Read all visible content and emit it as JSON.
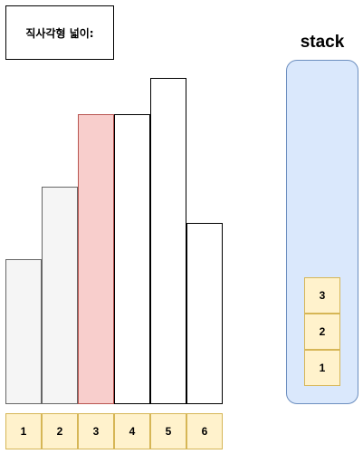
{
  "area_label": "직사각형 넓이:",
  "histogram": {
    "heights": [
      4,
      6,
      8,
      8,
      9,
      5
    ],
    "max_height": 9,
    "bar_fills": [
      "#f5f5f5",
      "#f5f5f5",
      "#f8cecc",
      "#ffffff",
      "#ffffff",
      "#ffffff"
    ],
    "bar_strokes": [
      "#666666",
      "#666666",
      "#b85450",
      "#000000",
      "#000000",
      "#000000"
    ],
    "indices": [
      "1",
      "2",
      "3",
      "4",
      "5",
      "6"
    ]
  },
  "stack": {
    "title": "stack",
    "items_top_to_bottom": [
      "3",
      "2",
      "1"
    ]
  }
}
